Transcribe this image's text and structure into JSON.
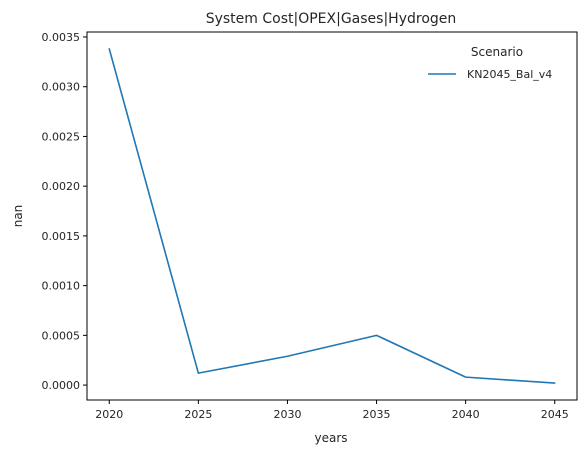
{
  "chart_data": {
    "type": "line",
    "title": "System Cost|OPEX|Gases|Hydrogen",
    "xlabel": "years",
    "ylabel": "nan",
    "x": [
      2020,
      2025,
      2030,
      2035,
      2040,
      2045
    ],
    "x_ticks": [
      "2020",
      "2025",
      "2030",
      "2035",
      "2040",
      "2045"
    ],
    "xlim": [
      2018.75,
      2046.25
    ],
    "y_ticks": [
      "0.0000",
      "0.0005",
      "0.0010",
      "0.0015",
      "0.0020",
      "0.0025",
      "0.0030",
      "0.0035"
    ],
    "ylim": [
      -0.00015,
      0.00355
    ],
    "grid": false,
    "legend": {
      "title": "Scenario",
      "placement": "top-right"
    },
    "series": [
      {
        "name": "KN2045_Bal_v4",
        "color": "#1f77b4",
        "values": [
          0.00338,
          0.00012,
          0.00029,
          0.0005,
          8e-05,
          2e-05
        ]
      }
    ]
  }
}
